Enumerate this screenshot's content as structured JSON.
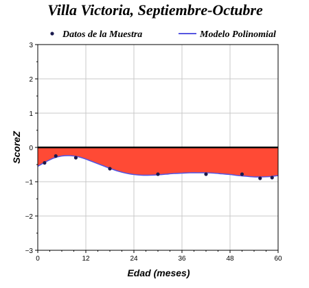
{
  "chart_data": {
    "type": "scatter",
    "title": "Villa Victoria, Septiembre-Octubre",
    "xlabel": "Edad (meses)",
    "ylabel": "ScoreZ",
    "xlim": [
      0,
      60
    ],
    "ylim": [
      -3,
      3
    ],
    "xticks": [
      0,
      12,
      24,
      36,
      48,
      60
    ],
    "yticks": [
      -3,
      -2,
      -1,
      0,
      1,
      2,
      3
    ],
    "xtick_labels": [
      "0",
      "12",
      "24",
      "36",
      "48",
      "60"
    ],
    "ytick_labels": [
      "−3",
      "−2",
      "−1",
      "0",
      "1",
      "2",
      "3"
    ],
    "grid": true,
    "legend_position": "top",
    "series": [
      {
        "name": "Datos de la Muestra",
        "kind": "scatter",
        "color": "#1a1a4e",
        "x": [
          1.7,
          4.5,
          9.5,
          18.0,
          30.0,
          42.0,
          51.0,
          55.5,
          58.5
        ],
        "y": [
          -0.45,
          -0.25,
          -0.3,
          -0.62,
          -0.78,
          -0.78,
          -0.78,
          -0.9,
          -0.88
        ]
      },
      {
        "name": "Modelo Polinomial",
        "kind": "line",
        "color": "#5555e0",
        "x": [
          0,
          2,
          4,
          6,
          8,
          10,
          12,
          14,
          16,
          18,
          20,
          22,
          24,
          26,
          28,
          30,
          32,
          34,
          36,
          38,
          40,
          42,
          44,
          46,
          48,
          50,
          52,
          54,
          56,
          58,
          60
        ],
        "y": [
          -0.55,
          -0.42,
          -0.31,
          -0.25,
          -0.24,
          -0.27,
          -0.34,
          -0.43,
          -0.52,
          -0.61,
          -0.69,
          -0.75,
          -0.79,
          -0.81,
          -0.81,
          -0.8,
          -0.78,
          -0.76,
          -0.75,
          -0.74,
          -0.74,
          -0.74,
          -0.75,
          -0.77,
          -0.79,
          -0.82,
          -0.84,
          -0.86,
          -0.86,
          -0.85,
          -0.82
        ]
      }
    ],
    "fill_between_curve_and_zero": {
      "color": "#ff4a35"
    }
  }
}
